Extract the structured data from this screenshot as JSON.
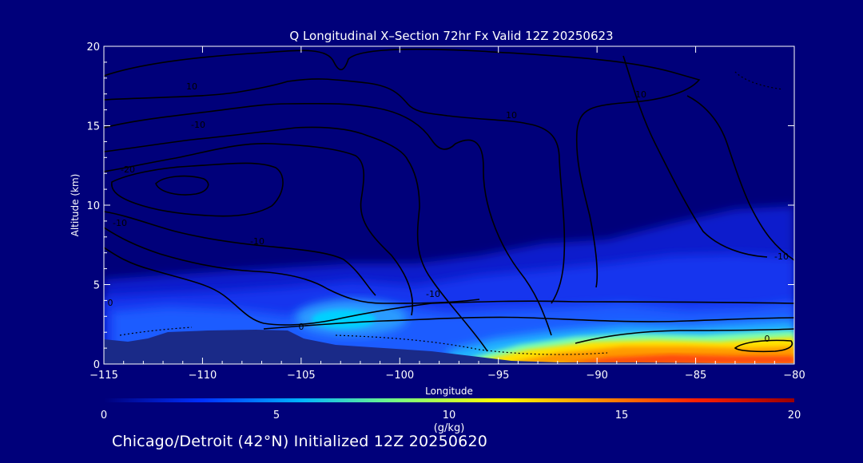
{
  "chart_data": {
    "type": "heatmap",
    "title": "Q Longitudinal X–Section 72hr  Fx Valid 12Z 20250623",
    "xlabel": "Longitude",
    "ylabel": "Altitude (km)",
    "xlim": [
      -115,
      -80
    ],
    "ylim": [
      0,
      20
    ],
    "x_ticks": [
      "−115",
      "−110",
      "−105",
      "−100",
      "−95",
      "−90",
      "−85",
      "−80"
    ],
    "x_tick_values": [
      -115,
      -110,
      -105,
      -100,
      -95,
      -90,
      -85,
      -80
    ],
    "y_ticks": [
      "0",
      "5",
      "10",
      "15",
      "20"
    ],
    "y_tick_values": [
      0,
      5,
      10,
      15,
      20
    ],
    "colorbar": {
      "label": "(g/kg)",
      "range": [
        0,
        20
      ],
      "ticks": [
        "0",
        "5",
        "10",
        "15",
        "20"
      ],
      "tick_values": [
        0,
        5,
        10,
        15,
        20
      ],
      "colors": [
        "#00007a",
        "#0030ff",
        "#00b4ff",
        "#7cff7c",
        "#ffff00",
        "#ff9000",
        "#ff2000",
        "#9a0000"
      ]
    },
    "contour_labels": [
      "10",
      "-10",
      "-20",
      "-10",
      "0",
      "10",
      "-10",
      "0",
      "-10",
      "-10",
      "10",
      "0"
    ],
    "moisture_regions": [
      {
        "lon_range": [
          -115,
          -80
        ],
        "alt_range": [
          0,
          6
        ],
        "q_approx": 3
      },
      {
        "lon_range": [
          -105,
          -100
        ],
        "alt_range": [
          2,
          4
        ],
        "q_approx": 7
      },
      {
        "lon_range": [
          -96,
          -80
        ],
        "alt_range": [
          0,
          1.5
        ],
        "q_approx": 13
      },
      {
        "lon_range": [
          -92,
          -81
        ],
        "alt_range": [
          0,
          0.8
        ],
        "q_approx": 16
      }
    ]
  },
  "footer": "Chicago/Detroit (42°N) Initialized 12Z 20250620",
  "colors": {
    "background": "#00007a",
    "contour": "#000000",
    "text": "#ffffff"
  }
}
